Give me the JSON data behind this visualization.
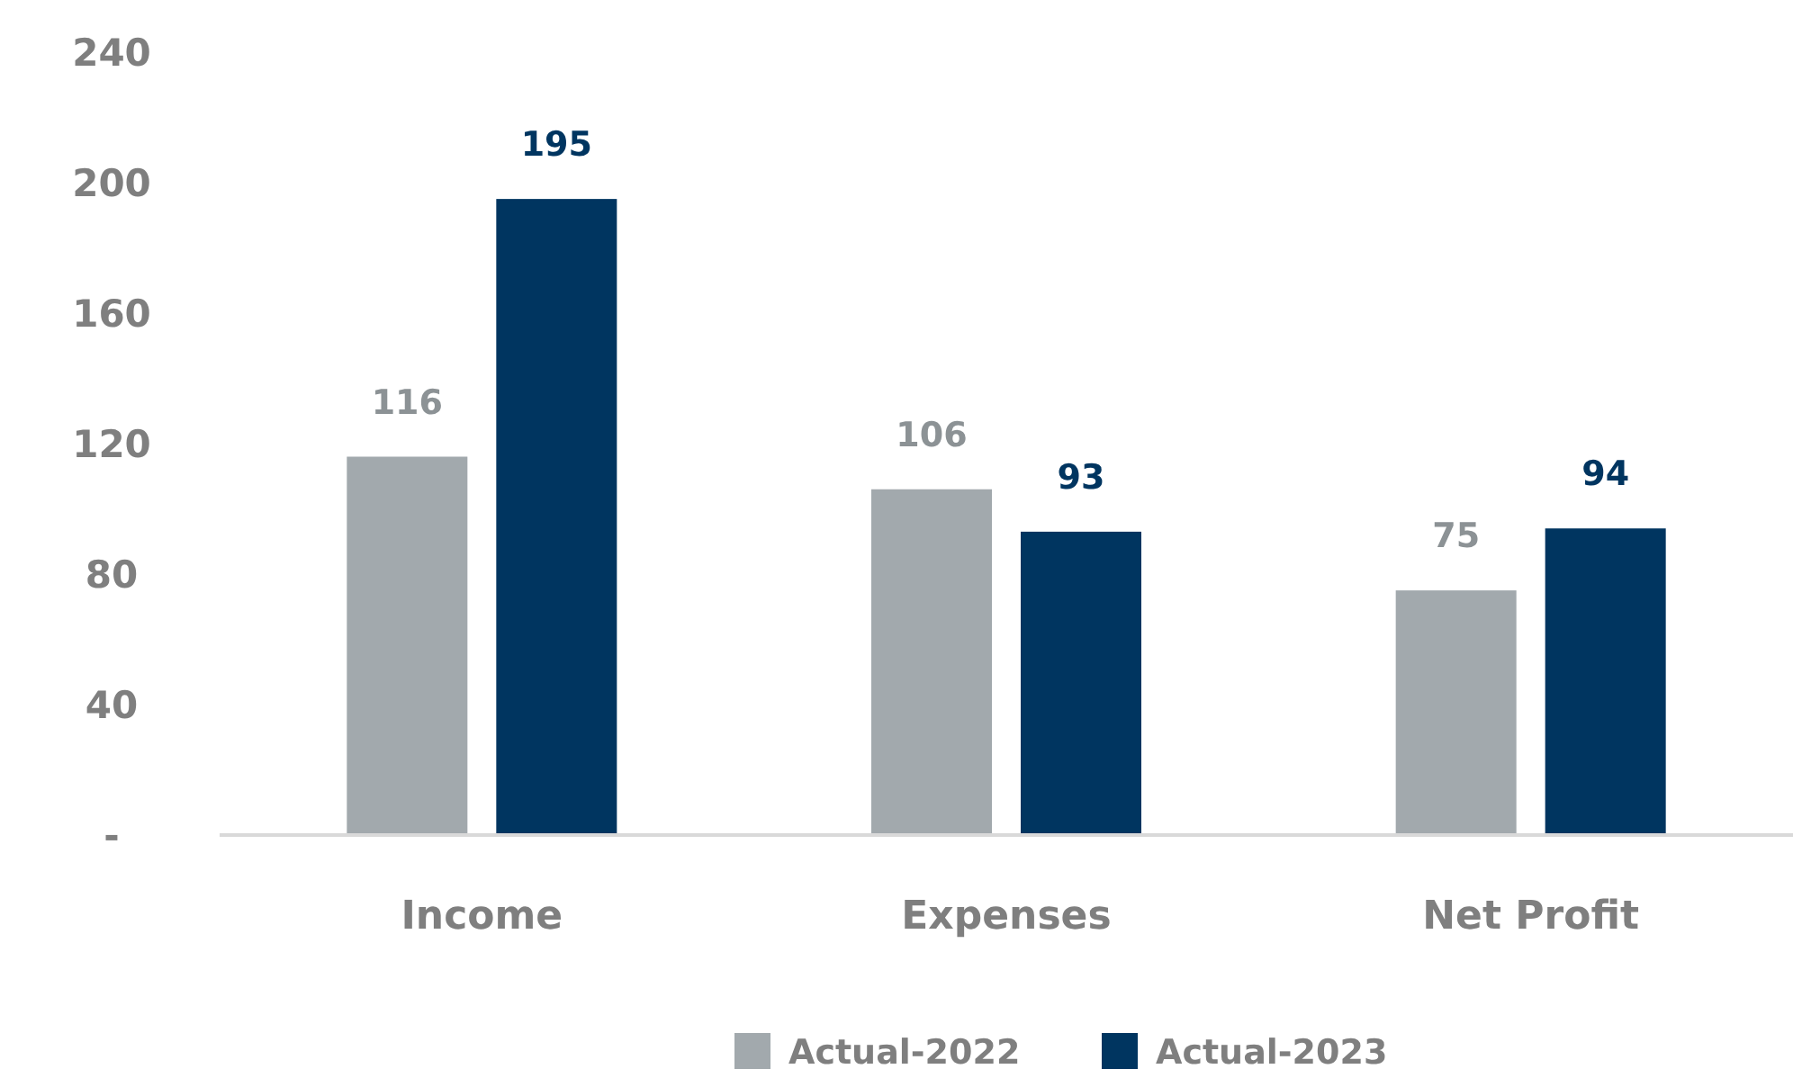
{
  "chart_data": {
    "type": "bar",
    "categories": [
      "Income",
      "Expenses",
      "Net Profit"
    ],
    "series": [
      {
        "name": "Actual-2022",
        "color": "#a2a9ad",
        "values": [
          116,
          106,
          75
        ]
      },
      {
        "name": "Actual-2023",
        "color": "#003560",
        "values": [
          195,
          93,
          94
        ]
      }
    ],
    "ylim": [
      0,
      240
    ],
    "yticks": [
      {
        "value": 0,
        "label": "-"
      },
      40,
      80,
      120,
      160,
      200,
      240
    ],
    "data_labels": true,
    "grid": false,
    "legend": "bottom"
  }
}
